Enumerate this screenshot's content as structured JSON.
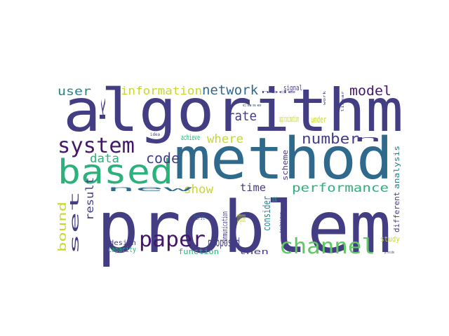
{
  "palette": {
    "dark_purple": "#45176b",
    "indigo": "#433d84",
    "blue": "#2f6a8d",
    "teal": "#26838e",
    "green": "#2bb17b",
    "light_green": "#5ec961",
    "yellow_green": "#a2da37",
    "yellow": "#c8d82a"
  },
  "words": [
    {
      "text": "algorithm",
      "color": "#433d84"
    },
    {
      "text": "method",
      "color": "#2f6a8d"
    },
    {
      "text": "problem",
      "color": "#433d84"
    },
    {
      "text": "based",
      "color": "#2bb17b"
    },
    {
      "text": "system",
      "color": "#45176b"
    },
    {
      "text": "channel",
      "color": "#5ec961"
    },
    {
      "text": "paper",
      "color": "#45176b"
    },
    {
      "text": "network",
      "color": "#2f6a8d"
    },
    {
      "text": "user",
      "color": "#26838e"
    },
    {
      "text": "information",
      "color": "#c8d82a"
    },
    {
      "text": "model",
      "color": "#45176b"
    },
    {
      "text": "code",
      "color": "#433d84"
    },
    {
      "text": "where",
      "color": "#c8d82a"
    },
    {
      "text": "rate",
      "color": "#433d84"
    },
    {
      "text": "number",
      "color": "#433d84"
    },
    {
      "text": "data",
      "color": "#2bb17b"
    },
    {
      "text": "show",
      "color": "#c8d82a"
    },
    {
      "text": "time",
      "color": "#433d84"
    },
    {
      "text": "performance",
      "color": "#2bb17b"
    },
    {
      "text": "proposed",
      "color": "#433d84"
    },
    {
      "text": "propose",
      "color": "#c8d82a"
    },
    {
      "text": "optimal",
      "color": "#2bb17b"
    },
    {
      "text": "approximation",
      "color": "#c8d82a"
    },
    {
      "text": "under",
      "color": "#c8d82a"
    },
    {
      "text": "signal",
      "color": "#433d84"
    },
    {
      "text": "n",
      "color": "#433d84"
    },
    {
      "text": "k",
      "color": "#433d84"
    },
    {
      "text": "achieve",
      "color": "#2bb17b"
    },
    {
      "text": "idea",
      "color": "#433d84"
    },
    {
      "text": "new",
      "color": "#2f6a8d"
    },
    {
      "text": "first",
      "color": "#2f6a8d"
    },
    {
      "text": "design",
      "color": "#433d84"
    },
    {
      "text": "capacity",
      "color": "#2bb17b"
    },
    {
      "text": "function",
      "color": "#2bb17b"
    },
    {
      "text": "then",
      "color": "#433d84"
    },
    {
      "text": "study",
      "color": "#c8d82a"
    },
    {
      "text": "case",
      "color": "#2f6a8d"
    },
    {
      "text": "node",
      "color": "#433d84"
    },
    {
      "text": "provide",
      "color": "#433d84"
    },
    {
      "text": "set",
      "color": "#433d84"
    },
    {
      "text": "bound",
      "color": "#c8d82a"
    },
    {
      "text": "result",
      "color": "#433d84"
    },
    {
      "text": "consider",
      "color": "#26838e"
    },
    {
      "text": "scheme",
      "color": "#433d84"
    },
    {
      "text": "different",
      "color": "#433d84"
    },
    {
      "text": "analysis",
      "color": "#26838e"
    },
    {
      "text": "communication",
      "color": "#433d84"
    },
    {
      "text": "technique",
      "color": "#433d84"
    },
    {
      "text": "linear",
      "color": "#433d84"
    },
    {
      "text": "work",
      "color": "#433d84"
    }
  ]
}
